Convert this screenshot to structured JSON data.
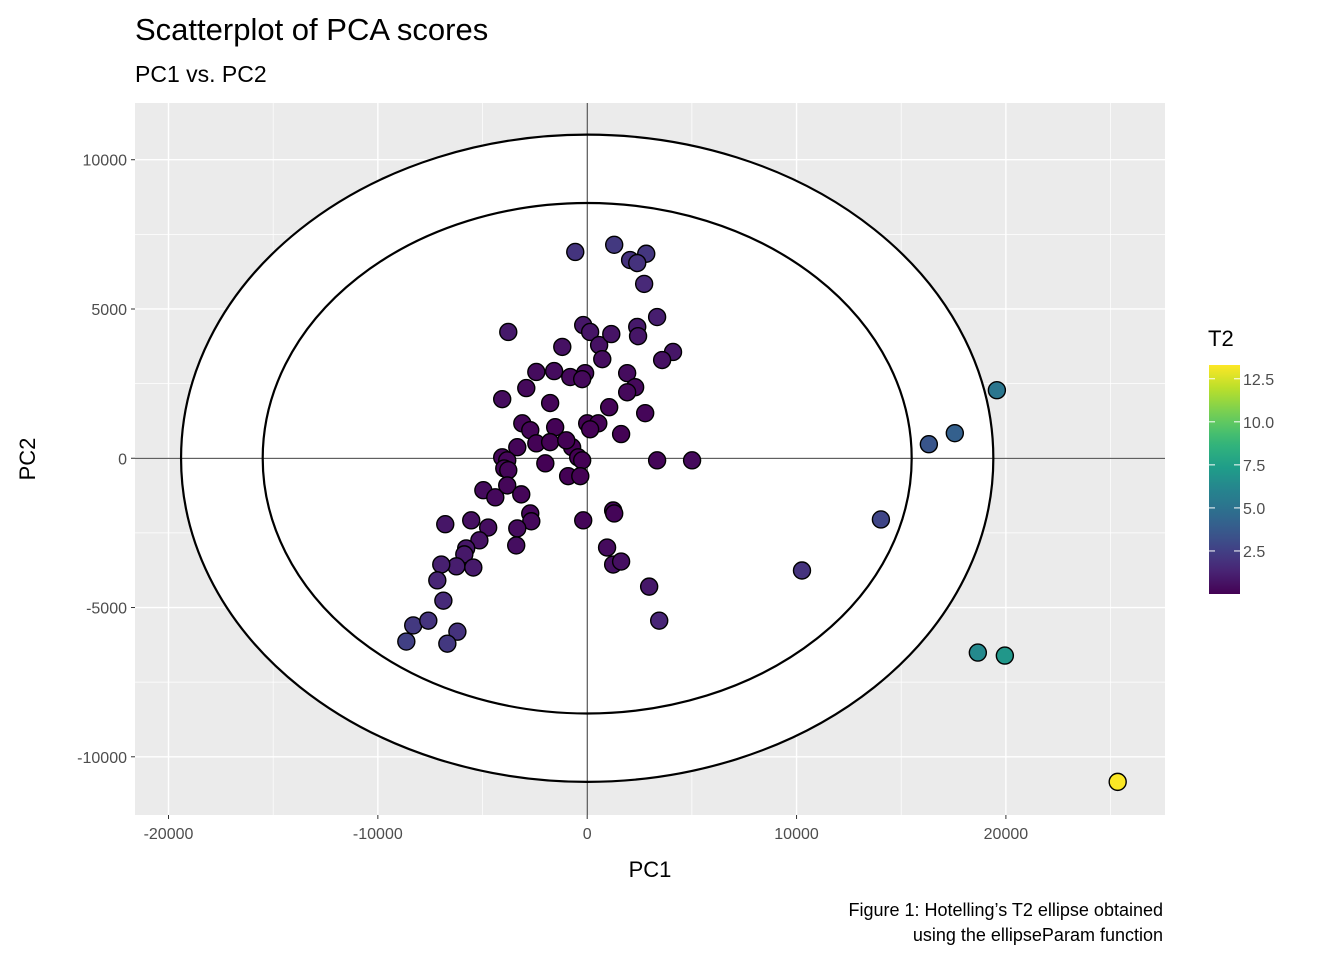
{
  "chart_data": {
    "type": "scatter",
    "title": "Scatterplot of PCA scores",
    "subtitle": "PC1 vs. PC2",
    "xlabel": "PC1",
    "ylabel": "PC2",
    "caption": [
      "Figure 1: Hotelling’s T2 ellipse obtained",
      "using the ellipseParam function"
    ],
    "xlim": [
      -21600,
      27600
    ],
    "ylim": [
      -11950,
      11900
    ],
    "x_ticks": [
      -20000,
      -10000,
      0,
      10000,
      20000
    ],
    "x_tick_labels": [
      "-20000",
      "-10000",
      "0",
      "10000",
      "20000"
    ],
    "y_ticks": [
      -10000,
      -5000,
      0,
      5000,
      10000
    ],
    "y_tick_labels": [
      "-10000",
      "-5000",
      "0",
      "5000",
      "10000"
    ],
    "grid": true,
    "reference_lines": {
      "x": 0,
      "y": 0
    },
    "ellipses": [
      {
        "center": [
          0,
          0
        ],
        "a": 19400,
        "b": 10840
      },
      {
        "center": [
          0,
          0
        ],
        "a": 15500,
        "b": 8550
      }
    ],
    "color_scale": {
      "name": "viridis",
      "title": "T2",
      "limits": [
        0.0,
        13.3
      ],
      "ticks": [
        2.5,
        5.0,
        7.5,
        10.0,
        12.5
      ],
      "tick_labels": [
        "2.5",
        "5.0",
        "7.5",
        "10.0",
        "12.5"
      ],
      "position": "right"
    },
    "points": [
      {
        "x": -570,
        "y": 6910,
        "t2": 2.0
      },
      {
        "x": 1290,
        "y": 7150,
        "t2": 2.2
      },
      {
        "x": 2820,
        "y": 6850,
        "t2": 2.1
      },
      {
        "x": 2050,
        "y": 6640,
        "t2": 1.9
      },
      {
        "x": 2390,
        "y": 6540,
        "t2": 1.9
      },
      {
        "x": 2720,
        "y": 5840,
        "t2": 1.5
      },
      {
        "x": 3340,
        "y": 4730,
        "t2": 1.1
      },
      {
        "x": -190,
        "y": 4460,
        "t2": 0.83
      },
      {
        "x": 140,
        "y": 4230,
        "t2": 0.75
      },
      {
        "x": 570,
        "y": 3790,
        "t2": 0.6
      },
      {
        "x": 1150,
        "y": 4160,
        "t2": 0.7
      },
      {
        "x": 2390,
        "y": 4400,
        "t2": 0.9
      },
      {
        "x": 2430,
        "y": 4090,
        "t2": 0.8
      },
      {
        "x": -3770,
        "y": 4230,
        "t2": 0.9
      },
      {
        "x": -1190,
        "y": 3730,
        "t2": 0.6
      },
      {
        "x": 4100,
        "y": 3560,
        "t2": 0.8
      },
      {
        "x": 3580,
        "y": 3290,
        "t2": 0.6
      },
      {
        "x": 720,
        "y": 3320,
        "t2": 0.46
      },
      {
        "x": -2430,
        "y": 2890,
        "t2": 0.4
      },
      {
        "x": -1580,
        "y": 2920,
        "t2": 0.4
      },
      {
        "x": -810,
        "y": 2720,
        "t2": 0.3
      },
      {
        "x": -100,
        "y": 2850,
        "t2": 0.34
      },
      {
        "x": -240,
        "y": 2650,
        "t2": 0.29
      },
      {
        "x": 1910,
        "y": 2850,
        "t2": 0.4
      },
      {
        "x": 2290,
        "y": 2380,
        "t2": 0.3
      },
      {
        "x": 1910,
        "y": 2210,
        "t2": 0.3
      },
      {
        "x": -4060,
        "y": 1980,
        "t2": 0.4
      },
      {
        "x": -2910,
        "y": 2350,
        "t2": 0.3
      },
      {
        "x": -1770,
        "y": 1850,
        "t2": 0.2
      },
      {
        "x": 1050,
        "y": 1710,
        "t2": 0.13
      },
      {
        "x": 2770,
        "y": 1510,
        "t2": 0.2
      },
      {
        "x": -3100,
        "y": 1170,
        "t2": 0.2
      },
      {
        "x": -2720,
        "y": 940,
        "t2": 0.14
      },
      {
        "x": -1530,
        "y": 1040,
        "t2": 0.08
      },
      {
        "x": 0,
        "y": 1170,
        "t2": 0.06
      },
      {
        "x": 530,
        "y": 1170,
        "t2": 0.06
      },
      {
        "x": 140,
        "y": 970,
        "t2": 0.04
      },
      {
        "x": 1620,
        "y": 810,
        "t2": 0.06
      },
      {
        "x": -3340,
        "y": 370,
        "t2": 0.15
      },
      {
        "x": -4060,
        "y": 30,
        "t2": 0.21
      },
      {
        "x": -2430,
        "y": 500,
        "t2": 0.09
      },
      {
        "x": -1770,
        "y": 540,
        "t2": 0.05
      },
      {
        "x": -720,
        "y": 370,
        "t2": 0.01
      },
      {
        "x": -1000,
        "y": 600,
        "t2": 0.03
      },
      {
        "x": -2000,
        "y": -170,
        "t2": 0.05
      },
      {
        "x": -3820,
        "y": -70,
        "t2": 0.19
      },
      {
        "x": -3960,
        "y": -340,
        "t2": 0.21
      },
      {
        "x": -430,
        "y": 30,
        "t2": 0.01
      },
      {
        "x": -240,
        "y": -70,
        "t2": 0.01
      },
      {
        "x": 3340,
        "y": -70,
        "t2": 0.15
      },
      {
        "x": 5010,
        "y": -70,
        "t2": 0.33
      },
      {
        "x": -3770,
        "y": -400,
        "t2": 0.19
      },
      {
        "x": -910,
        "y": -600,
        "t2": 0.03
      },
      {
        "x": -330,
        "y": -600,
        "t2": 0.02
      },
      {
        "x": -4960,
        "y": -1070,
        "t2": 0.37
      },
      {
        "x": -4390,
        "y": -1310,
        "t2": 0.32
      },
      {
        "x": -3820,
        "y": -910,
        "t2": 0.22
      },
      {
        "x": -3150,
        "y": -1210,
        "t2": 0.19
      },
      {
        "x": -2720,
        "y": -1850,
        "t2": 0.24
      },
      {
        "x": -2670,
        "y": -2110,
        "t2": 0.28
      },
      {
        "x": -190,
        "y": -2080,
        "t2": 0.18
      },
      {
        "x": 1240,
        "y": -1750,
        "t2": 0.15
      },
      {
        "x": 1290,
        "y": -1850,
        "t2": 0.16
      },
      {
        "x": -6780,
        "y": -2210,
        "t2": 0.8
      },
      {
        "x": -5540,
        "y": -2080,
        "t2": 0.58
      },
      {
        "x": -4730,
        "y": -2320,
        "t2": 0.51
      },
      {
        "x": -3340,
        "y": -2350,
        "t2": 0.38
      },
      {
        "x": -3390,
        "y": -2920,
        "t2": 0.51
      },
      {
        "x": -5150,
        "y": -2750,
        "t2": 0.67
      },
      {
        "x": -5780,
        "y": -3020,
        "t2": 0.81
      },
      {
        "x": -5870,
        "y": -3220,
        "t2": 0.88
      },
      {
        "x": -6250,
        "y": -3620,
        "t2": 1.06
      },
      {
        "x": -6970,
        "y": -3560,
        "t2": 1.16
      },
      {
        "x": -5440,
        "y": -3660,
        "t2": 0.95
      },
      {
        "x": -7160,
        "y": -4090,
        "t2": 1.37
      },
      {
        "x": 950,
        "y": -2990,
        "t2": 0.38
      },
      {
        "x": 1240,
        "y": -3560,
        "t2": 0.55
      },
      {
        "x": 1620,
        "y": -3460,
        "t2": 0.53
      },
      {
        "x": 2960,
        "y": -4300,
        "t2": 0.88
      },
      {
        "x": 3440,
        "y": -5440,
        "t2": 1.38
      },
      {
        "x": -6870,
        "y": -4770,
        "t2": 1.56
      },
      {
        "x": -8310,
        "y": -5600,
        "t2": 2.21
      },
      {
        "x": -7590,
        "y": -5440,
        "t2": 1.98
      },
      {
        "x": -8640,
        "y": -6140,
        "t2": 2.54
      },
      {
        "x": -6200,
        "y": -5810,
        "t2": 1.91
      },
      {
        "x": -6680,
        "y": -6210,
        "t2": 2.19
      },
      {
        "x": 10260,
        "y": -3760,
        "t2": 1.96
      },
      {
        "x": 14030,
        "y": -2050,
        "t2": 2.74
      },
      {
        "x": 16320,
        "y": 470,
        "t2": 3.48
      },
      {
        "x": 17560,
        "y": 840,
        "t2": 4.04
      },
      {
        "x": 19570,
        "y": 2280,
        "t2": 5.21
      },
      {
        "x": 18660,
        "y": -6510,
        "t2": 6.3
      },
      {
        "x": 19950,
        "y": -6610,
        "t2": 7.0
      },
      {
        "x": 25340,
        "y": -10840,
        "t2": 13.26
      }
    ]
  }
}
